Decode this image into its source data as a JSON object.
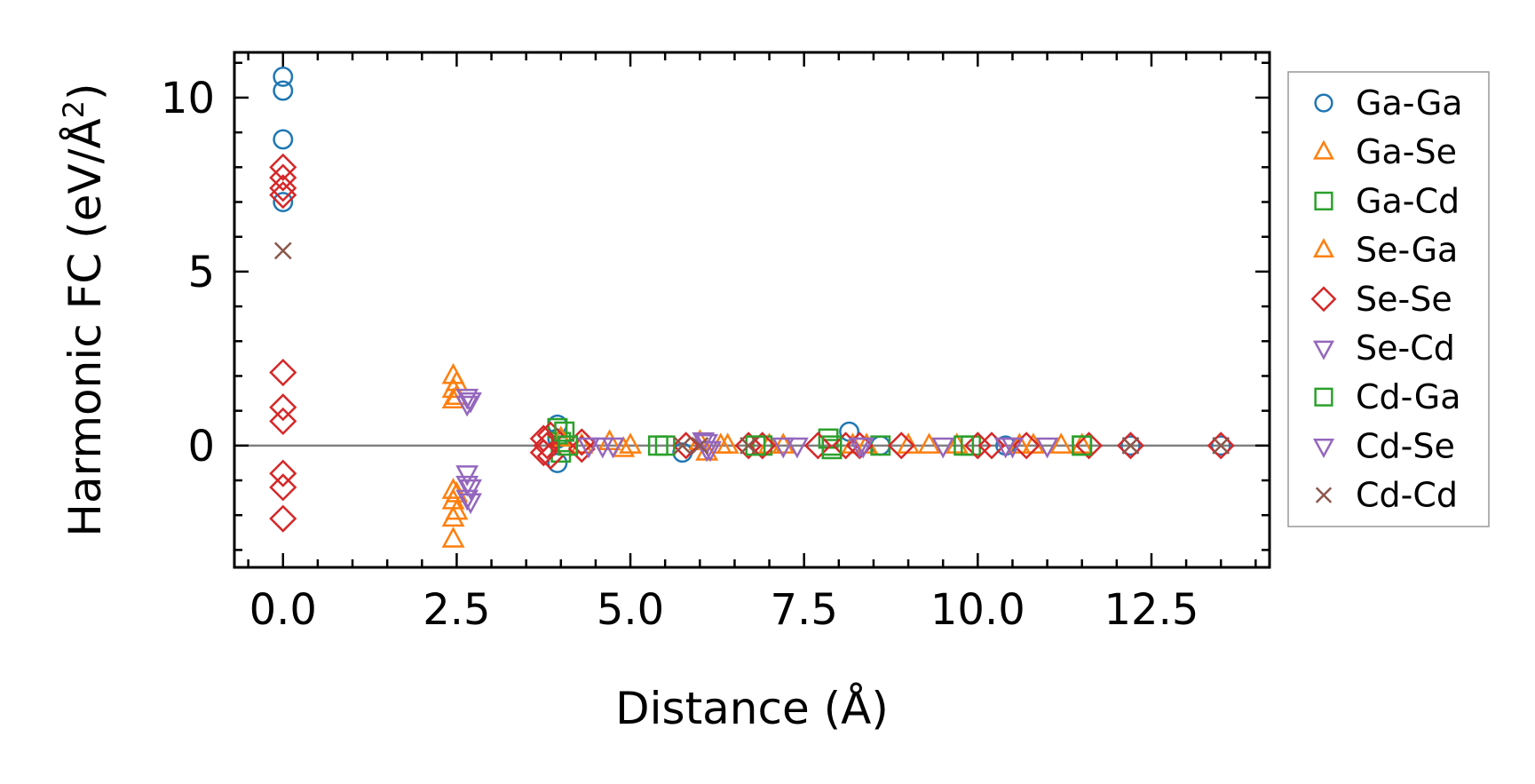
{
  "chart_data": {
    "type": "scatter",
    "title": "",
    "xlabel": "Distance (Å)",
    "ylabel": "Harmonic FC (eV/Å",
    "ylabel_sup": "2",
    "ylabel_close": ")",
    "xlim": [
      -0.7,
      14.2
    ],
    "ylim": [
      -3.5,
      11.3
    ],
    "xticks": [
      0.0,
      2.5,
      5.0,
      7.5,
      10.0,
      12.5
    ],
    "xtick_labels": [
      "0.0",
      "2.5",
      "5.0",
      "7.5",
      "10.0",
      "12.5"
    ],
    "yticks": [
      0,
      5,
      10
    ],
    "ytick_labels": [
      "0",
      "5",
      "10"
    ],
    "zero_line": true,
    "legend_position": "right-outside",
    "series": [
      {
        "name": "Ga-Ga",
        "marker": "circle",
        "color": "#1f77b4",
        "points": [
          [
            0,
            10.6
          ],
          [
            0,
            10.2
          ],
          [
            0,
            8.8
          ],
          [
            0,
            7.0
          ],
          [
            3.95,
            0.6
          ],
          [
            3.95,
            -0.5
          ],
          [
            3.95,
            0.2
          ],
          [
            5.75,
            -0.2
          ],
          [
            8.15,
            0.4
          ],
          [
            8.6,
            0
          ],
          [
            10.4,
            0
          ],
          [
            12.2,
            0
          ],
          [
            13.5,
            0
          ]
        ]
      },
      {
        "name": "Ga-Se",
        "marker": "triangle-up",
        "color": "#ff7f0e",
        "points": [
          [
            2.45,
            2.0
          ],
          [
            2.45,
            1.6
          ],
          [
            2.45,
            1.3
          ],
          [
            2.45,
            -1.3
          ],
          [
            2.45,
            -1.6
          ],
          [
            2.45,
            -2.1
          ],
          [
            2.45,
            -2.7
          ],
          [
            4.7,
            0.1
          ],
          [
            4.9,
            -0.1
          ],
          [
            6.0,
            0.1
          ],
          [
            6.1,
            -0.2
          ],
          [
            6.4,
            0
          ],
          [
            7.0,
            0
          ],
          [
            8.4,
            0
          ],
          [
            9.0,
            0
          ],
          [
            9.7,
            0
          ],
          [
            10.6,
            0
          ],
          [
            11.2,
            0
          ],
          [
            11.5,
            0
          ]
        ]
      },
      {
        "name": "Ga-Cd",
        "marker": "square",
        "color": "#2ca02c",
        "points": [
          [
            3.95,
            0.5
          ],
          [
            4.0,
            0.1
          ],
          [
            4.0,
            -0.2
          ],
          [
            5.4,
            0
          ],
          [
            6.9,
            0
          ],
          [
            7.85,
            0.2
          ],
          [
            7.9,
            -0.1
          ],
          [
            8.6,
            0
          ],
          [
            9.9,
            0
          ],
          [
            11.5,
            0
          ]
        ]
      },
      {
        "name": "Se-Ga",
        "marker": "triangle-up",
        "color": "#ff7f0e",
        "points": [
          [
            2.5,
            1.8
          ],
          [
            2.5,
            1.4
          ],
          [
            2.5,
            -1.4
          ],
          [
            2.5,
            -1.9
          ],
          [
            4.0,
            0.2
          ],
          [
            4.3,
            0
          ],
          [
            5.0,
            0
          ],
          [
            6.3,
            0
          ],
          [
            7.2,
            0
          ],
          [
            8.2,
            0
          ],
          [
            9.3,
            0
          ],
          [
            10.8,
            0
          ]
        ]
      },
      {
        "name": "Se-Se",
        "marker": "diamond",
        "color": "#d62728",
        "points": [
          [
            0,
            8.0
          ],
          [
            0,
            7.7
          ],
          [
            0,
            7.4
          ],
          [
            0,
            7.2
          ],
          [
            0,
            2.1
          ],
          [
            0,
            1.1
          ],
          [
            0,
            0.7
          ],
          [
            0,
            -0.8
          ],
          [
            0,
            -1.2
          ],
          [
            0,
            -2.1
          ],
          [
            3.75,
            0.2
          ],
          [
            3.75,
            -0.2
          ],
          [
            3.8,
            0
          ],
          [
            3.85,
            0.3
          ],
          [
            3.85,
            -0.3
          ],
          [
            4.3,
            0.1
          ],
          [
            4.3,
            -0.1
          ],
          [
            5.8,
            0
          ],
          [
            6.7,
            0
          ],
          [
            6.9,
            0
          ],
          [
            7.7,
            0
          ],
          [
            8.1,
            0
          ],
          [
            8.3,
            0
          ],
          [
            8.9,
            0
          ],
          [
            10.0,
            0
          ],
          [
            10.2,
            0
          ],
          [
            10.7,
            0
          ],
          [
            11.6,
            0
          ],
          [
            12.2,
            0
          ],
          [
            13.5,
            0
          ]
        ]
      },
      {
        "name": "Se-Cd",
        "marker": "triangle-down",
        "color": "#9467bd",
        "points": [
          [
            2.65,
            1.4
          ],
          [
            2.65,
            1.2
          ],
          [
            2.65,
            -0.8
          ],
          [
            2.65,
            -1.1
          ],
          [
            2.65,
            -1.5
          ],
          [
            4.4,
            0
          ],
          [
            4.75,
            0
          ],
          [
            6.1,
            0.1
          ],
          [
            6.1,
            -0.1
          ],
          [
            7.2,
            0
          ],
          [
            8.3,
            0
          ],
          [
            9.5,
            0
          ],
          [
            10.5,
            0
          ],
          [
            11.0,
            0
          ]
        ]
      },
      {
        "name": "Cd-Ga",
        "marker": "square",
        "color": "#2ca02c",
        "points": [
          [
            4.05,
            0.4
          ],
          [
            4.1,
            0
          ],
          [
            5.5,
            0
          ],
          [
            6.8,
            0
          ],
          [
            7.9,
            0
          ],
          [
            9.8,
            0
          ],
          [
            11.5,
            0
          ]
        ]
      },
      {
        "name": "Cd-Se",
        "marker": "triangle-down",
        "color": "#9467bd",
        "points": [
          [
            2.7,
            1.3
          ],
          [
            2.7,
            -1.2
          ],
          [
            2.7,
            -1.6
          ],
          [
            4.6,
            0
          ],
          [
            6.05,
            0.15
          ],
          [
            6.15,
            -0.1
          ],
          [
            7.4,
            0
          ],
          [
            8.35,
            0
          ],
          [
            10.4,
            0
          ]
        ]
      },
      {
        "name": "Cd-Cd",
        "marker": "x",
        "color": "#8c564b",
        "points": [
          [
            0,
            5.6
          ],
          [
            5.75,
            0
          ],
          [
            6.0,
            0
          ],
          [
            6.7,
            0
          ],
          [
            12.2,
            0
          ],
          [
            13.5,
            0
          ]
        ]
      }
    ]
  }
}
